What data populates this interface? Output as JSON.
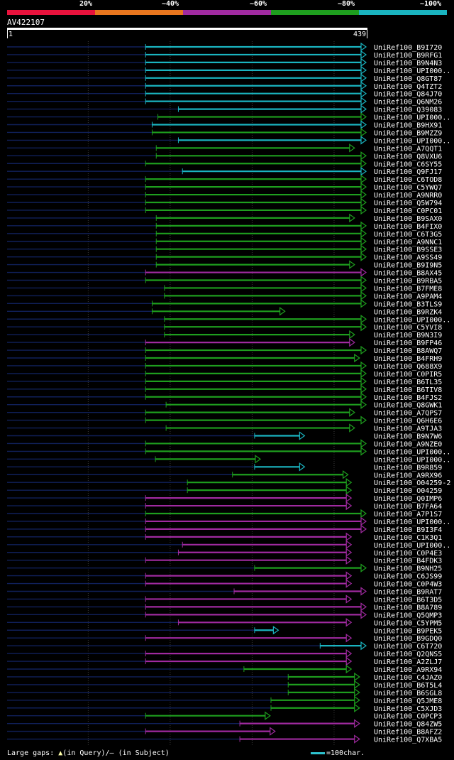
{
  "legend": {
    "labels": [
      "20%",
      "~40%",
      "~60%",
      "~80%",
      "~100%"
    ],
    "colors": [
      "#e8123c",
      "#e8761e",
      "#a02aa0",
      "#1e9e1e",
      "#1ab4c0"
    ]
  },
  "query": {
    "id": "AV422107",
    "start": "1",
    "end": "439",
    "length": 439
  },
  "footer": {
    "gaps_label": "Large gaps:",
    "gaps_query": "(in Query)/",
    "gaps_subject": "– (in Subject)",
    "scale_label": "=100char."
  },
  "chart_data": {
    "type": "alignment_overview",
    "query_length": 439,
    "color_key": {
      "c": "~100%",
      "g": "~80%",
      "m": "~60%"
    },
    "hits": [
      {
        "name": "UniRef100_B9I720",
        "c": "c",
        "s": 170,
        "e": 439
      },
      {
        "name": "UniRef100_B9RFG1",
        "c": "c",
        "s": 170,
        "e": 439
      },
      {
        "name": "UniRef100_B9N4N3",
        "c": "c",
        "s": 170,
        "e": 439
      },
      {
        "name": "UniRef100_UPI000..",
        "c": "c",
        "s": 170,
        "e": 439
      },
      {
        "name": "UniRef100_Q8GT87",
        "c": "c",
        "s": 170,
        "e": 439
      },
      {
        "name": "UniRef100_Q4TZT2",
        "c": "c",
        "s": 170,
        "e": 439
      },
      {
        "name": "UniRef100_Q84J70",
        "c": "c",
        "s": 170,
        "e": 439
      },
      {
        "name": "UniRef100_Q6NM26",
        "c": "c",
        "s": 170,
        "e": 439
      },
      {
        "name": "UniRef100_Q39083",
        "c": "c",
        "s": 210,
        "e": 439
      },
      {
        "name": "UniRef100_UPI000..",
        "c": "g",
        "s": 185,
        "e": 439
      },
      {
        "name": "UniRef100_B9HX91",
        "c": "c",
        "s": 178,
        "e": 439
      },
      {
        "name": "UniRef100_B9MZZ9",
        "c": "g",
        "s": 178,
        "e": 439
      },
      {
        "name": "UniRef100_UPI000..",
        "c": "c",
        "s": 210,
        "e": 439
      },
      {
        "name": "UniRef100_A7QQT1",
        "c": "g",
        "s": 183,
        "e": 425
      },
      {
        "name": "UniRef100_Q8VXU6",
        "c": "g",
        "s": 183,
        "e": 439
      },
      {
        "name": "UniRef100_C6SY55",
        "c": "g",
        "s": 170,
        "e": 439
      },
      {
        "name": "UniRef100_Q9FJ17",
        "c": "c",
        "s": 215,
        "e": 439
      },
      {
        "name": "UniRef100_C6TOD8",
        "c": "g",
        "s": 170,
        "e": 439
      },
      {
        "name": "UniRef100_C5YWQ7",
        "c": "g",
        "s": 170,
        "e": 439
      },
      {
        "name": "UniRef100_A9NRR0",
        "c": "g",
        "s": 170,
        "e": 439
      },
      {
        "name": "UniRef100_Q5W794",
        "c": "g",
        "s": 170,
        "e": 439
      },
      {
        "name": "UniRef100_C0PC01",
        "c": "g",
        "s": 170,
        "e": 439
      },
      {
        "name": "UniRef100_B9SAX0",
        "c": "g",
        "s": 183,
        "e": 425
      },
      {
        "name": "UniRef100_B4FIX0",
        "c": "g",
        "s": 183,
        "e": 439
      },
      {
        "name": "UniRef100_C6T3G5",
        "c": "g",
        "s": 183,
        "e": 439
      },
      {
        "name": "UniRef100_A9NNC1",
        "c": "g",
        "s": 183,
        "e": 439
      },
      {
        "name": "UniRef100_B9SSE3",
        "c": "g",
        "s": 183,
        "e": 439
      },
      {
        "name": "UniRef100_A9SS49",
        "c": "g",
        "s": 183,
        "e": 439
      },
      {
        "name": "UniRef100_B9I9N5",
        "c": "g",
        "s": 183,
        "e": 425
      },
      {
        "name": "UniRef100_B8AX45",
        "c": "m",
        "s": 170,
        "e": 439
      },
      {
        "name": "UniRef100_B9RBA5",
        "c": "g",
        "s": 170,
        "e": 439
      },
      {
        "name": "UniRef100_B7FME8",
        "c": "g",
        "s": 193,
        "e": 439
      },
      {
        "name": "UniRef100_A9PAM4",
        "c": "g",
        "s": 193,
        "e": 439
      },
      {
        "name": "UniRef100_B3TLS9",
        "c": "g",
        "s": 178,
        "e": 439
      },
      {
        "name": "UniRef100_B9RZK4",
        "c": "g",
        "s": 178,
        "e": 340
      },
      {
        "name": "UniRef100_UPI000..",
        "c": "g",
        "s": 193,
        "e": 439
      },
      {
        "name": "UniRef100_C5YVI8",
        "c": "g",
        "s": 193,
        "e": 439
      },
      {
        "name": "UniRef100_B9N3I9",
        "c": "g",
        "s": 193,
        "e": 425
      },
      {
        "name": "UniRef100_B9FP46",
        "c": "m",
        "s": 170,
        "e": 425
      },
      {
        "name": "UniRef100_B8AWQ7",
        "c": "g",
        "s": 170,
        "e": 439
      },
      {
        "name": "UniRef100_B4FRH9",
        "c": "g",
        "s": 170,
        "e": 431
      },
      {
        "name": "UniRef100_Q688X9",
        "c": "g",
        "s": 170,
        "e": 439
      },
      {
        "name": "UniRef100_C0PIR5",
        "c": "g",
        "s": 170,
        "e": 439
      },
      {
        "name": "UniRef100_B6TL35",
        "c": "g",
        "s": 170,
        "e": 439
      },
      {
        "name": "UniRef100_B6TIV8",
        "c": "g",
        "s": 170,
        "e": 439
      },
      {
        "name": "UniRef100_B4FJS2",
        "c": "g",
        "s": 170,
        "e": 439
      },
      {
        "name": "UniRef100_Q8GWK1",
        "c": "g",
        "s": 195,
        "e": 439
      },
      {
        "name": "UniRef100_A7QPS7",
        "c": "g",
        "s": 170,
        "e": 425
      },
      {
        "name": "UniRef100_Q6H6E6",
        "c": "g",
        "s": 170,
        "e": 439
      },
      {
        "name": "UniRef100_A9TJA3",
        "c": "g",
        "s": 195,
        "e": 425
      },
      {
        "name": "UniRef100_B9N7W6",
        "c": "c",
        "s": 303,
        "e": 364
      },
      {
        "name": "UniRef100_A9NZE0",
        "c": "g",
        "s": 170,
        "e": 439
      },
      {
        "name": "UniRef100_UPI000..",
        "c": "g",
        "s": 170,
        "e": 439
      },
      {
        "name": "UniRef100_UPI000..",
        "c": "g",
        "s": 182,
        "e": 310
      },
      {
        "name": "UniRef100_B9R859",
        "c": "c",
        "s": 303,
        "e": 364
      },
      {
        "name": "UniRef100_A9RX96",
        "c": "g",
        "s": 276,
        "e": 417
      },
      {
        "name": "UniRef100_O04259-2",
        "c": "g",
        "s": 221,
        "e": 421
      },
      {
        "name": "UniRef100_O04259",
        "c": "g",
        "s": 221,
        "e": 421
      },
      {
        "name": "UniRef100_Q0IMP6",
        "c": "m",
        "s": 170,
        "e": 421
      },
      {
        "name": "UniRef100_B7FA64",
        "c": "m",
        "s": 170,
        "e": 421
      },
      {
        "name": "UniRef100_A7P1S7",
        "c": "g",
        "s": 170,
        "e": 439
      },
      {
        "name": "UniRef100_UPI000..",
        "c": "m",
        "s": 170,
        "e": 439
      },
      {
        "name": "UniRef100_B9I3F4",
        "c": "m",
        "s": 170,
        "e": 439
      },
      {
        "name": "UniRef100_C1K3Q1",
        "c": "m",
        "s": 170,
        "e": 421
      },
      {
        "name": "UniRef100_UPI000..",
        "c": "m",
        "s": 215,
        "e": 421
      },
      {
        "name": "UniRef100_C0P4E3",
        "c": "m",
        "s": 210,
        "e": 421
      },
      {
        "name": "UniRef100_B4FDK3",
        "c": "m",
        "s": 170,
        "e": 421
      },
      {
        "name": "UniRef100_B9NH25",
        "c": "g",
        "s": 303,
        "e": 439
      },
      {
        "name": "UniRef100_C6JS99",
        "c": "m",
        "s": 170,
        "e": 421
      },
      {
        "name": "UniRef100_C0P4W3",
        "c": "m",
        "s": 170,
        "e": 421
      },
      {
        "name": "UniRef100_B9RAT7",
        "c": "m",
        "s": 278,
        "e": 439
      },
      {
        "name": "UniRef100_B6T3D5",
        "c": "m",
        "s": 170,
        "e": 421
      },
      {
        "name": "UniRef100_B8A789",
        "c": "m",
        "s": 170,
        "e": 439
      },
      {
        "name": "UniRef100_Q5QMP3",
        "c": "m",
        "s": 170,
        "e": 439
      },
      {
        "name": "UniRef100_C5YPM5",
        "c": "m",
        "s": 210,
        "e": 421
      },
      {
        "name": "UniRef100_B9PEK5",
        "c": "c",
        "s": 303,
        "e": 332
      },
      {
        "name": "UniRef100_B9GDQ0",
        "c": "m",
        "s": 170,
        "e": 421
      },
      {
        "name": "UniRef100_C6T720",
        "c": "c",
        "s": 383,
        "e": 439
      },
      {
        "name": "UniRef100_Q2QNS5",
        "c": "m",
        "s": 170,
        "e": 421
      },
      {
        "name": "UniRef100_A2ZLJ7",
        "c": "m",
        "s": 170,
        "e": 421
      },
      {
        "name": "UniRef100_A9RX94",
        "c": "g",
        "s": 290,
        "e": 421
      },
      {
        "name": "UniRef100_C4JAZ0",
        "c": "g",
        "s": 344,
        "e": 431
      },
      {
        "name": "UniRef100_B6T5L4",
        "c": "g",
        "s": 344,
        "e": 431
      },
      {
        "name": "UniRef100_B6SGL8",
        "c": "g",
        "s": 344,
        "e": 431
      },
      {
        "name": "UniRef100_Q5JME8",
        "c": "g",
        "s": 323,
        "e": 431
      },
      {
        "name": "UniRef100_C5XJD3",
        "c": "g",
        "s": 323,
        "e": 431
      },
      {
        "name": "UniRef100_C0PCP3",
        "c": "g",
        "s": 170,
        "e": 322
      },
      {
        "name": "UniRef100_Q84ZW5",
        "c": "m",
        "s": 285,
        "e": 431
      },
      {
        "name": "UniRef100_B8AFZ2",
        "c": "m",
        "s": 170,
        "e": 328
      },
      {
        "name": "UniRef100_Q7XBA5",
        "c": "m",
        "s": 285,
        "e": 431
      }
    ]
  }
}
